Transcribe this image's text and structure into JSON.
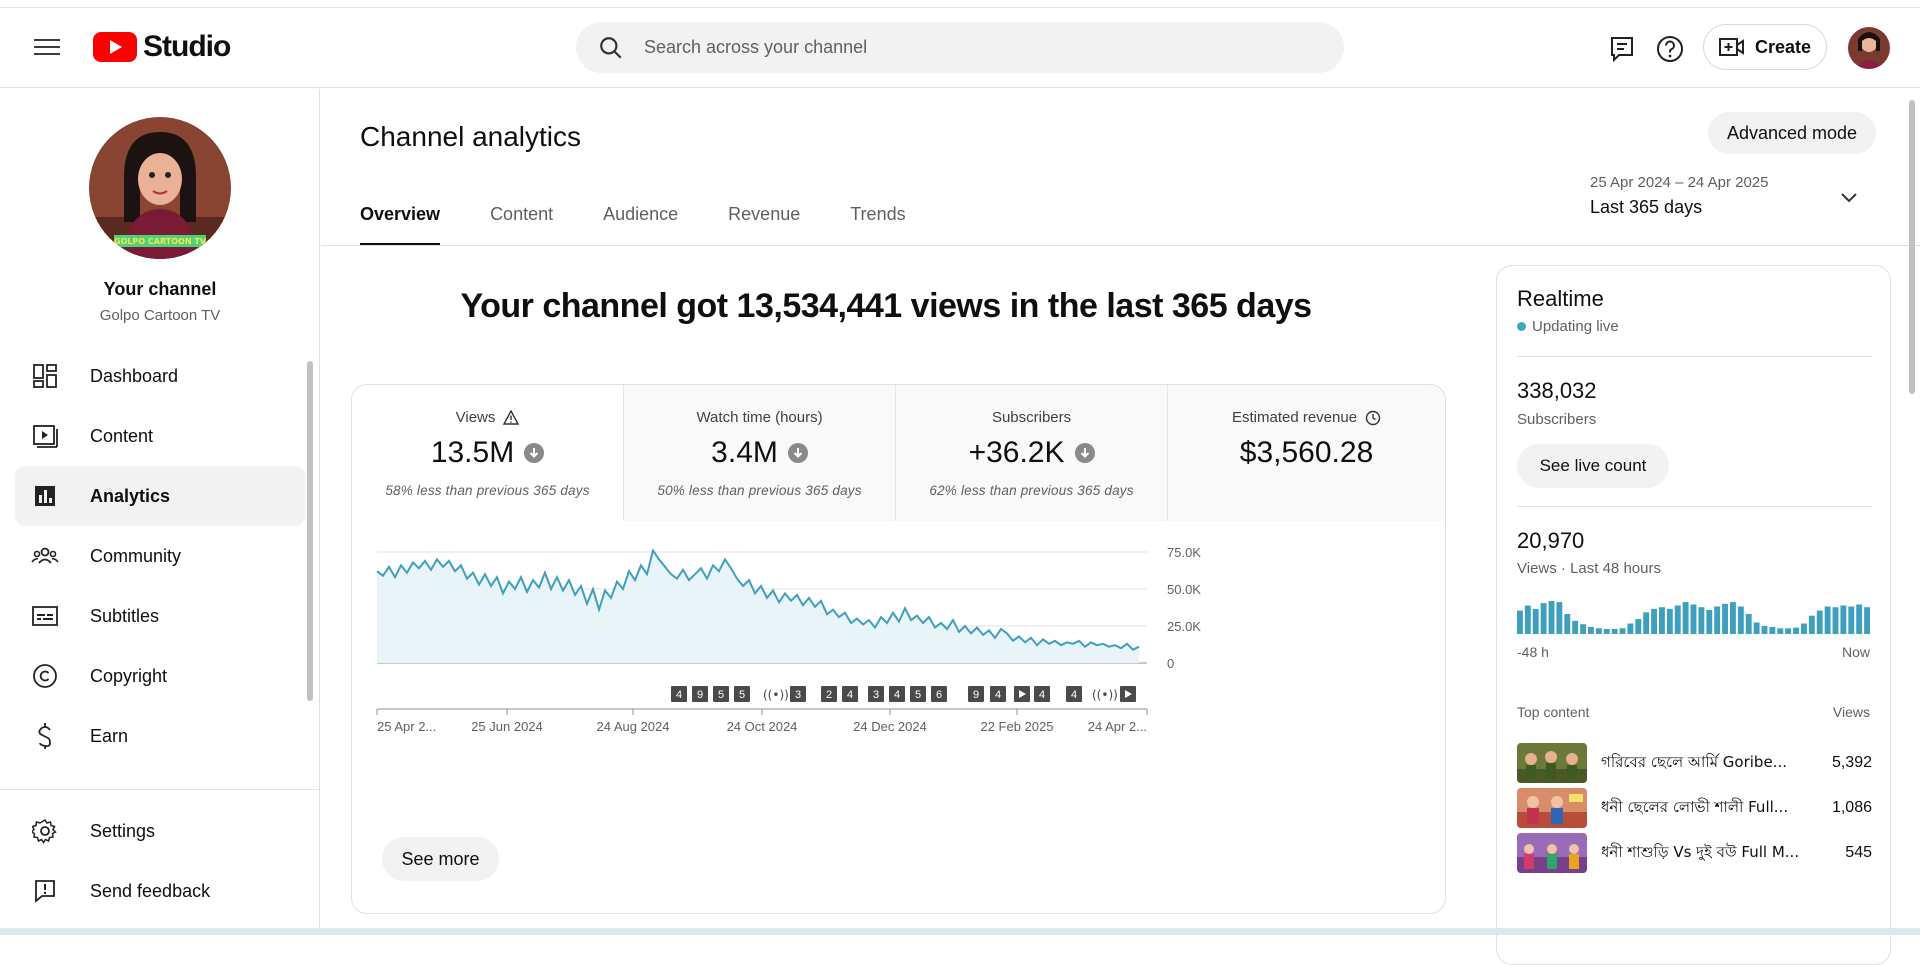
{
  "header": {
    "logo_text": "Studio",
    "search_placeholder": "Search across your channel",
    "create_label": "Create"
  },
  "sidebar": {
    "channel_title": "Your channel",
    "channel_name": "Golpo Cartoon TV",
    "items": [
      {
        "label": "Dashboard",
        "icon": "dashboard-icon"
      },
      {
        "label": "Content",
        "icon": "content-icon"
      },
      {
        "label": "Analytics",
        "icon": "analytics-icon",
        "active": true
      },
      {
        "label": "Community",
        "icon": "community-icon"
      },
      {
        "label": "Subtitles",
        "icon": "subtitles-icon"
      },
      {
        "label": "Copyright",
        "icon": "copyright-icon"
      },
      {
        "label": "Earn",
        "icon": "earn-icon"
      }
    ],
    "bottom_items": [
      {
        "label": "Settings",
        "icon": "settings-icon"
      },
      {
        "label": "Send feedback",
        "icon": "feedback-icon"
      }
    ]
  },
  "main": {
    "page_title": "Channel analytics",
    "advanced_mode_label": "Advanced mode",
    "tabs": [
      "Overview",
      "Content",
      "Audience",
      "Revenue",
      "Trends"
    ],
    "date_range": "25 Apr 2024 – 24 Apr 2025",
    "date_label": "Last 365 days",
    "headline": "Your channel got 13,534,441 views in the last 365 days",
    "metrics": [
      {
        "label": "Views",
        "value": "13.5M",
        "comparison": "58% less than previous 365 days"
      },
      {
        "label": "Watch time (hours)",
        "value": "3.4M",
        "comparison": "50% less than previous 365 days"
      },
      {
        "label": "Subscribers",
        "value": "+36.2K",
        "comparison": "62% less than previous 365 days"
      },
      {
        "label": "Estimated revenue",
        "value": "$3,560.28",
        "comparison": ""
      }
    ],
    "see_more_label": "See more"
  },
  "chart_data": {
    "type": "area",
    "series": [
      {
        "values": [
          62,
          59,
          65,
          58,
          66,
          61,
          68,
          64,
          69,
          63,
          70,
          65,
          69,
          62,
          66,
          57,
          61,
          53,
          60,
          52,
          58,
          47,
          55,
          50,
          58,
          48,
          56,
          51,
          61,
          50,
          58,
          49,
          56,
          46,
          52,
          40,
          50,
          36,
          49,
          44,
          55,
          50,
          62,
          56,
          66,
          60,
          76,
          70,
          65,
          60,
          57,
          63,
          56,
          60,
          64,
          57,
          66,
          62,
          70,
          64,
          57,
          52,
          56,
          47,
          52,
          44,
          49,
          41,
          47,
          42,
          46,
          39,
          44,
          38,
          42,
          33,
          36,
          31,
          34,
          27,
          30,
          26,
          29,
          24,
          31,
          27,
          34,
          28,
          37,
          29,
          32,
          27,
          31,
          24,
          27,
          23,
          29,
          21,
          25,
          20,
          24,
          19,
          22,
          17,
          23,
          20,
          15,
          18,
          14,
          17,
          12,
          16,
          13,
          15,
          12,
          14,
          13,
          15,
          11,
          14,
          12,
          13,
          11,
          12,
          10,
          13,
          9,
          11
        ]
      }
    ],
    "x_tick_labels": [
      "25 Apr 2...",
      "25 Jun 2024",
      "24 Aug 2024",
      "24 Oct 2024",
      "24 Dec 2024",
      "22 Feb 2025",
      "24 Apr 2..."
    ],
    "y_tick_labels": [
      "75.0K",
      "50.0K",
      "25.0K",
      "0"
    ],
    "ylim": [
      0,
      75000
    ],
    "color": "#3ea0be",
    "fill": "#e8f4f8",
    "markers": [
      {
        "kind": "num",
        "text": "4"
      },
      {
        "kind": "num",
        "text": "9"
      },
      {
        "kind": "num",
        "text": "5"
      },
      {
        "kind": "num",
        "text": "5"
      },
      {
        "kind": "live"
      },
      {
        "kind": "num",
        "text": "3"
      },
      {
        "kind": "num",
        "text": "2"
      },
      {
        "kind": "num",
        "text": "4"
      },
      {
        "kind": "num",
        "text": "3"
      },
      {
        "kind": "num",
        "text": "4"
      },
      {
        "kind": "num",
        "text": "5"
      },
      {
        "kind": "num",
        "text": "6"
      },
      {
        "kind": "num",
        "text": "9"
      },
      {
        "kind": "num",
        "text": "4"
      },
      {
        "kind": "play"
      },
      {
        "kind": "num",
        "text": "4"
      },
      {
        "kind": "num",
        "text": "4"
      },
      {
        "kind": "live"
      },
      {
        "kind": "play"
      }
    ]
  },
  "realtime": {
    "title": "Realtime",
    "status": "Updating live",
    "subscribers": "338,032",
    "subscribers_label": "Subscribers",
    "live_count_label": "See live count",
    "views": "20,970",
    "views_label": "Views · Last 48 hours",
    "axis_start": "-48 h",
    "axis_end": "Now",
    "top_content_label": "Top content",
    "views_col_label": "Views",
    "bars": [
      60,
      75,
      65,
      82,
      88,
      85,
      50,
      30,
      20,
      12,
      8,
      6,
      6,
      8,
      22,
      35,
      55,
      65,
      70,
      65,
      75,
      85,
      78,
      70,
      62,
      72,
      80,
      85,
      72,
      50,
      25,
      15,
      12,
      8,
      8,
      10,
      22,
      45,
      60,
      72,
      70,
      75,
      72,
      78,
      70
    ],
    "items": [
      {
        "title": "গরিবের ছেলে আর্মি Goribe...",
        "views": "5,392"
      },
      {
        "title": "ধনী ছেলের লোভী শালী Full...",
        "views": "1,086"
      },
      {
        "title": "ধনী শাশুড়ি Vs দুই বউ Full M...",
        "views": "545"
      }
    ]
  }
}
